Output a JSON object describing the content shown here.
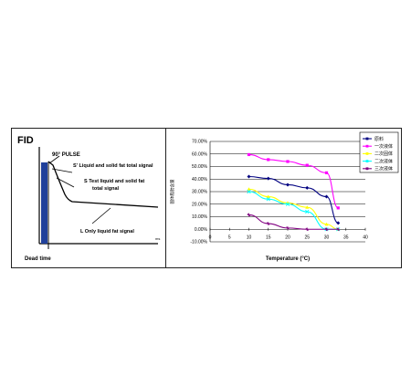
{
  "chart_data": [
    {
      "type": "line",
      "title": "FID",
      "annotations": {
        "pulse": "90° PULSE",
        "s_prime": "S' Liquid and solid fat total signal",
        "s": "S  Test liquid and solid fat total signal",
        "l": "L  Only liquid fat signal",
        "dead_time": "Dead time"
      },
      "time_axis_label": "ms",
      "colors": {
        "pulse_bar": "#1f3f9a",
        "curve": "#000000"
      }
    },
    {
      "type": "line",
      "xlabel": "Temperature (°C)",
      "ylabel": "固体脂肪含量",
      "xlim": [
        0,
        40
      ],
      "ylim": [
        -10,
        70
      ],
      "x_ticks": [
        0,
        5,
        10,
        15,
        20,
        25,
        30,
        35,
        40
      ],
      "y_ticks": [
        "-10.00%",
        "0.00%",
        "10.00%",
        "20.00%",
        "30.00%",
        "40.00%",
        "50.00%",
        "60.00%",
        "70.00%"
      ],
      "x": [
        10,
        15,
        20,
        25,
        30,
        33
      ],
      "series": [
        {
          "name": "原料",
          "color": "#000080",
          "values": [
            42,
            40.5,
            35.5,
            33,
            26,
            5
          ]
        },
        {
          "name": "一次液体",
          "color": "#ff00ff",
          "values": [
            59.5,
            55.5,
            54,
            51,
            45,
            17
          ]
        },
        {
          "name": "二次固体",
          "color": "#ffff00",
          "values": [
            32,
            26,
            21,
            17.5,
            4,
            0
          ]
        },
        {
          "name": "二次液体",
          "color": "#00ffff",
          "values": [
            30,
            24,
            20,
            14,
            0,
            0
          ]
        },
        {
          "name": "三次液体",
          "color": "#800080",
          "values": [
            11.5,
            4.5,
            1,
            0,
            0,
            0
          ]
        }
      ],
      "legend_position": "top-right"
    }
  ]
}
